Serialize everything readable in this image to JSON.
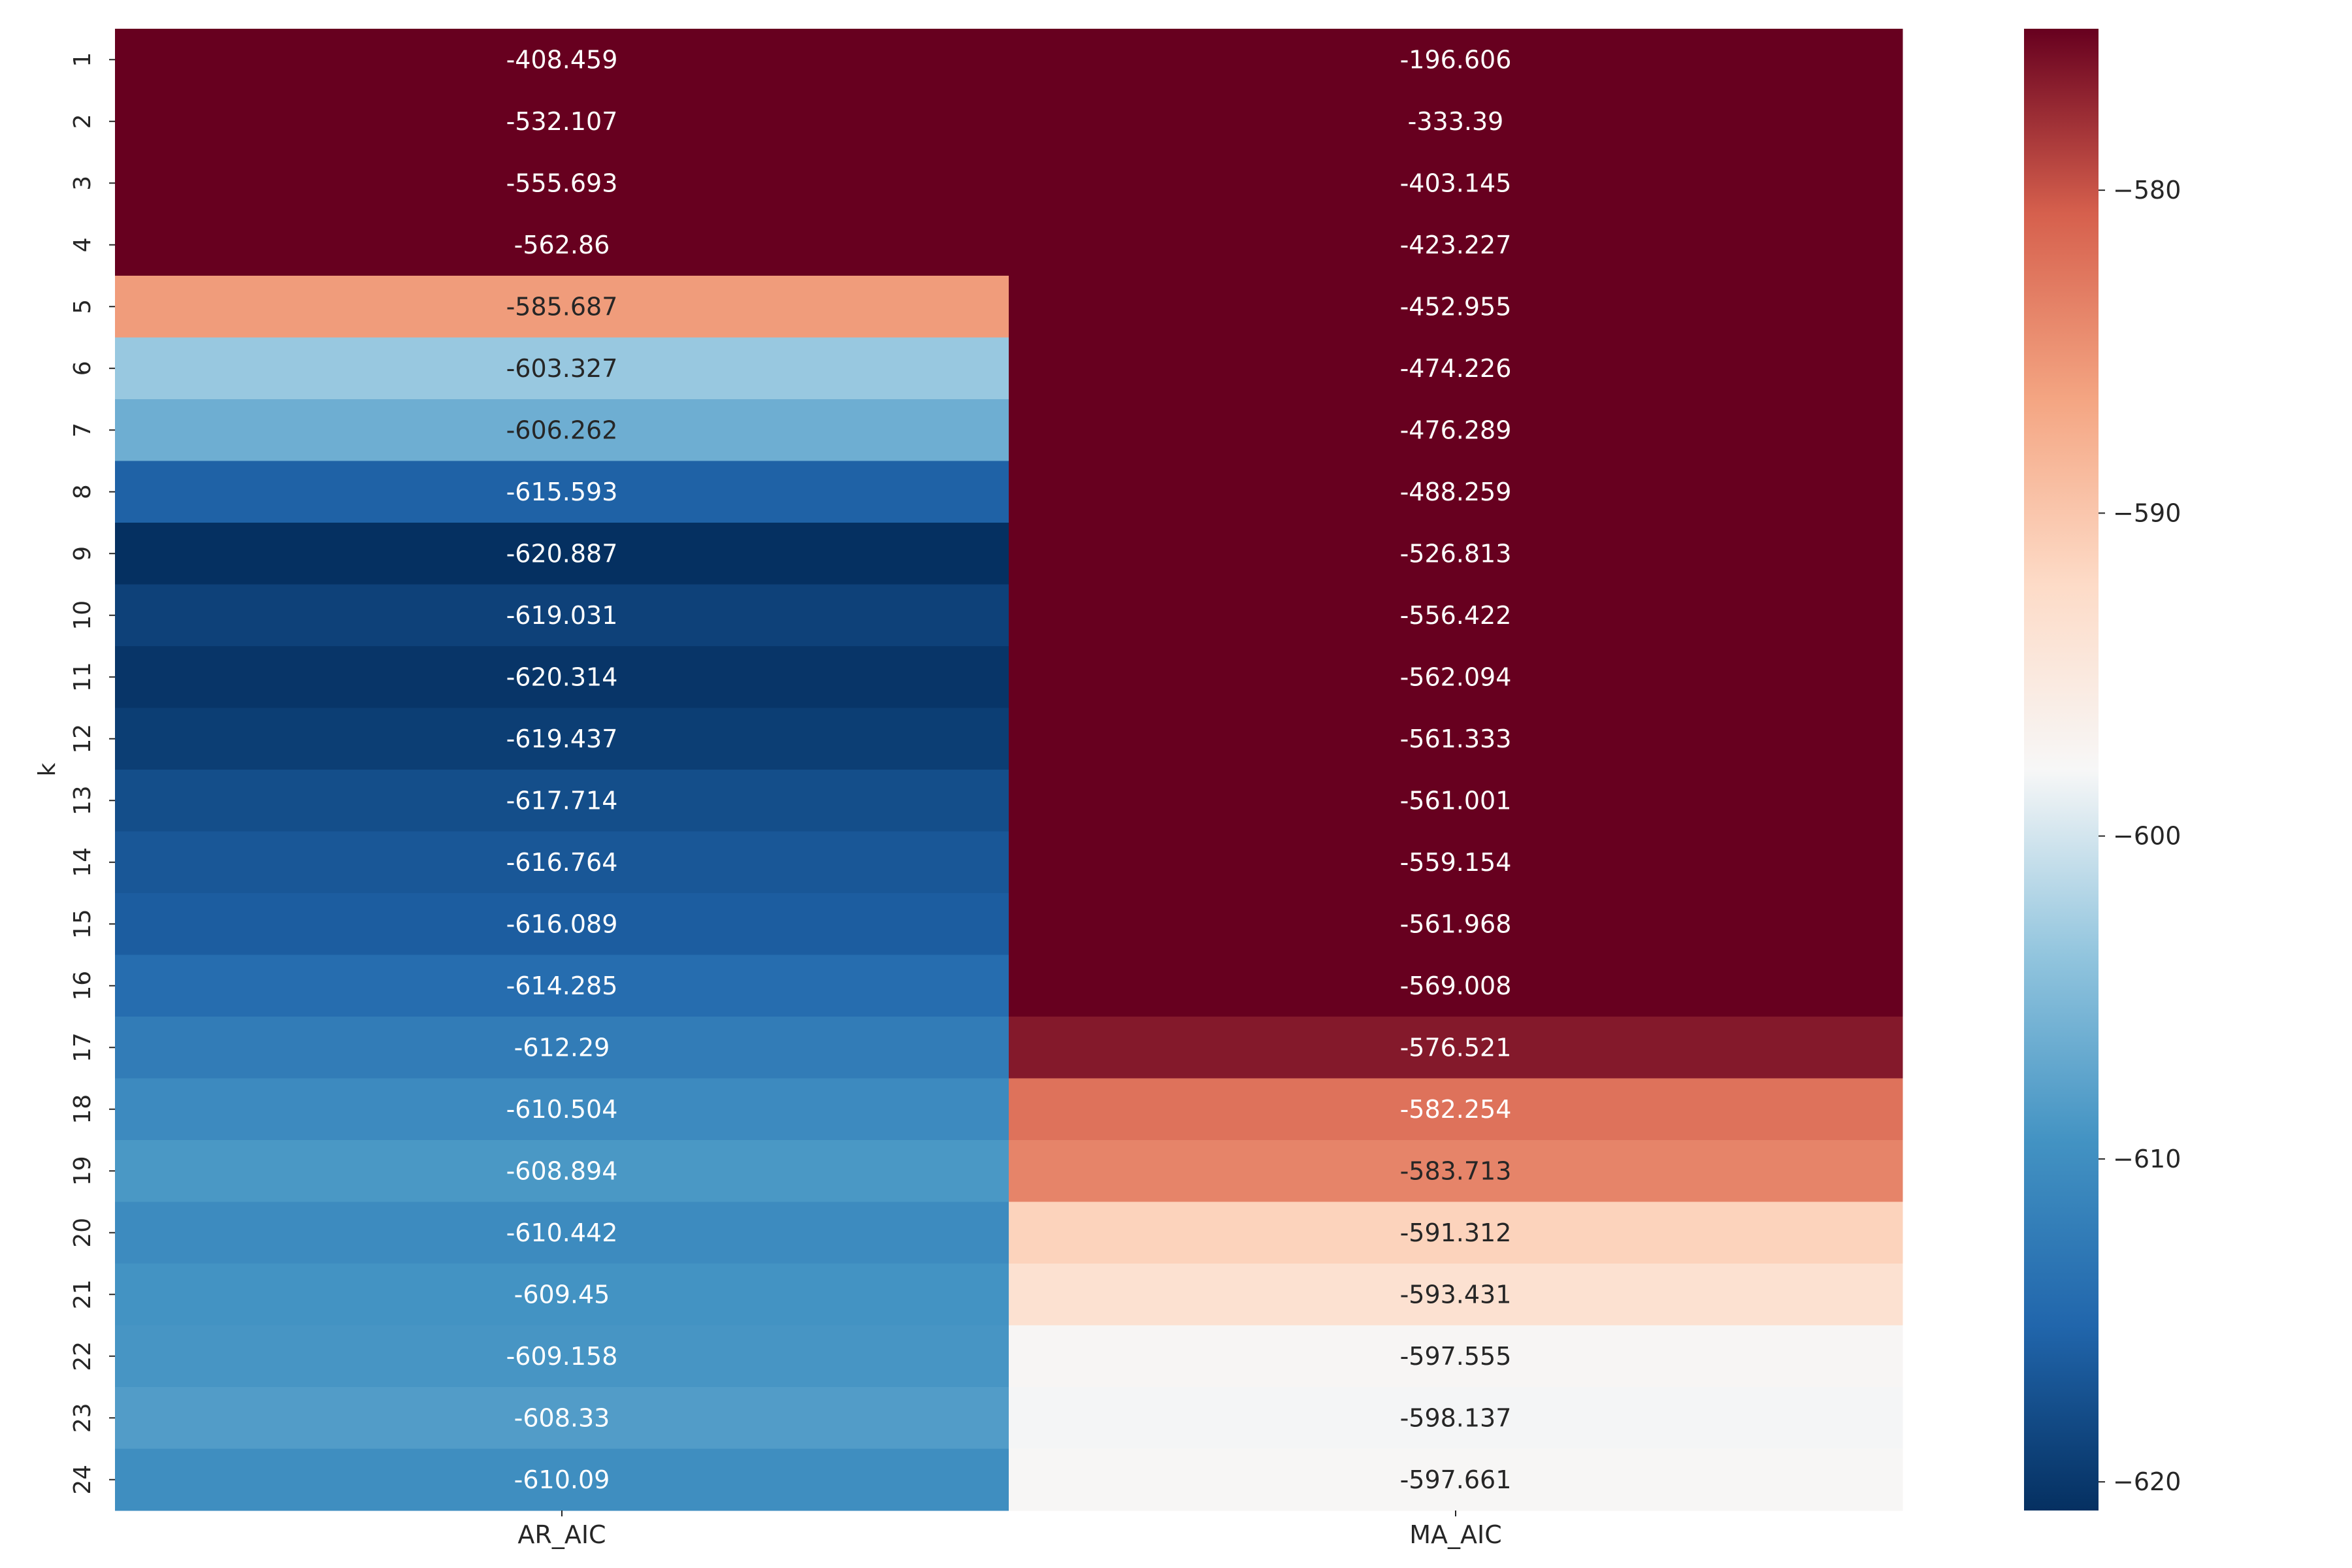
{
  "chart_data": {
    "type": "heatmap",
    "title": "",
    "xlabel": "",
    "ylabel": "k",
    "columns": [
      "AR_AIC",
      "MA_AIC"
    ],
    "rows": [
      "1",
      "2",
      "3",
      "4",
      "5",
      "6",
      "7",
      "8",
      "9",
      "10",
      "11",
      "12",
      "13",
      "14",
      "15",
      "16",
      "17",
      "18",
      "19",
      "20",
      "21",
      "22",
      "23",
      "24"
    ],
    "cells": [
      [
        "-408.459",
        "-196.606"
      ],
      [
        "-532.107",
        "-333.39"
      ],
      [
        "-555.693",
        "-403.145"
      ],
      [
        "-562.86",
        "-423.227"
      ],
      [
        "-585.687",
        "-452.955"
      ],
      [
        "-603.327",
        "-474.226"
      ],
      [
        "-606.262",
        "-476.289"
      ],
      [
        "-615.593",
        "-488.259"
      ],
      [
        "-620.887",
        "-526.813"
      ],
      [
        "-619.031",
        "-556.422"
      ],
      [
        "-620.314",
        "-562.094"
      ],
      [
        "-619.437",
        "-561.333"
      ],
      [
        "-617.714",
        "-561.001"
      ],
      [
        "-616.764",
        "-559.154"
      ],
      [
        "-616.089",
        "-561.968"
      ],
      [
        "-614.285",
        "-569.008"
      ],
      [
        "-612.29",
        "-576.521"
      ],
      [
        "-610.504",
        "-582.254"
      ],
      [
        "-608.894",
        "-583.713"
      ],
      [
        "-610.442",
        "-591.312"
      ],
      [
        "-609.45",
        "-593.431"
      ],
      [
        "-609.158",
        "-597.555"
      ],
      [
        "-608.33",
        "-598.137"
      ],
      [
        "-610.09",
        "-597.661"
      ]
    ],
    "colorscale": {
      "name": "RdBu_r",
      "vmin": -620.887,
      "vmax": -575.0,
      "ticks": [
        "−580",
        "−590",
        "−600",
        "−610",
        "−620"
      ],
      "tick_values": [
        -580,
        -590,
        -600,
        -610,
        -620
      ]
    },
    "grid": false,
    "legend": "colorbar-right"
  }
}
